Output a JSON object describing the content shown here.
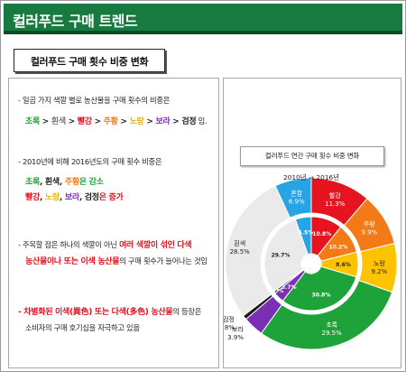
{
  "header": {
    "title": "컬러푸드 구매 트렌드"
  },
  "section": {
    "title": "컬러푸드 구매 횟수 비중 변화"
  },
  "bullets": {
    "b1": {
      "line1": "- 일곱 가지 색깔 별로 농산물을 구매 횟수의 비중은",
      "seq": [
        "초록",
        "흰색",
        "빨강",
        "주황",
        "노랑",
        "보라",
        "검정"
      ],
      "sep": " > ",
      "suffix": " 임."
    },
    "b2": {
      "line1": "- 2010년에 비해 2016년도의 구매 횟수 비중은",
      "dec": [
        "초록",
        "흰색",
        "주황"
      ],
      "dec_suffix": "은 감소",
      "inc": [
        "빨강",
        "노랑",
        "보라",
        "검정"
      ],
      "inc_suffix": "은 증가",
      "comma": ", "
    },
    "b3": {
      "line1a": "- 주목할 점은 하나의 색깔이 아닌 ",
      "line1b": "여러 색깔이 섞인 다색",
      "line2a": "농산물이나 또는 이색 농산물",
      "line2b": "의 구매 횟수가 늘어나는 것임"
    },
    "b4": {
      "line1a": "- 차별화된 이색(異色) 또는 다색(多色) 농산물",
      "line1b": "의 등장은",
      "line2": "소비자의 구매 호기심을 자극하고 있음"
    }
  },
  "chart_data": {
    "type": "pie",
    "title": "컬러푸드 연간 구매 횟수 비중 변화",
    "rings": [
      "2010년",
      "2016년"
    ],
    "ring_label_arrow": "⇒",
    "categories": [
      "빨강",
      "주황",
      "노랑",
      "초록",
      "보라",
      "검정",
      "흰색",
      "혼합"
    ],
    "colors": [
      "#e5141e",
      "#f47a17",
      "#fdc300",
      "#1ea33a",
      "#7b2fb5",
      "#1a1a1a",
      "#eaeaea",
      "#26a4e4"
    ],
    "series": [
      {
        "name": "2010년",
        "values": [
          10.8,
          10.2,
          8.6,
          30.8,
          3.7,
          0.7,
          29.7,
          5.5
        ]
      },
      {
        "name": "2016년",
        "values": [
          11.3,
          9.9,
          9.2,
          29.5,
          3.9,
          0.8,
          28.5,
          6.9
        ]
      }
    ],
    "percent_suffix": "%"
  }
}
